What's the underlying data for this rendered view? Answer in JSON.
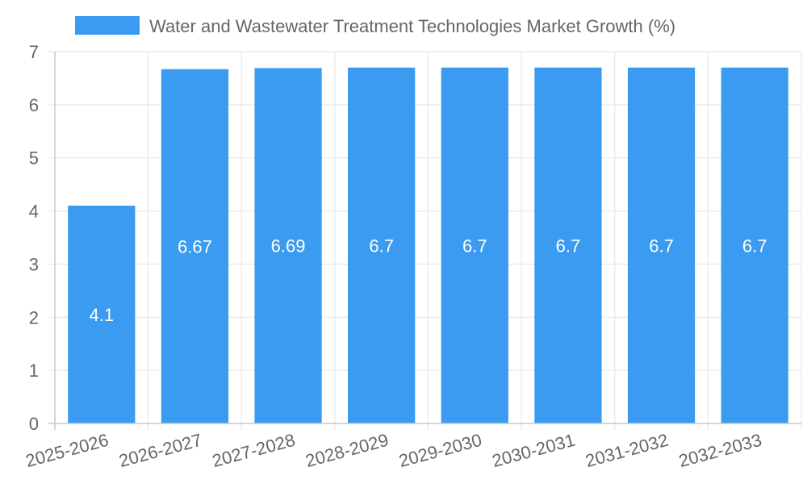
{
  "chart_data": {
    "type": "bar",
    "title": "",
    "xlabel": "",
    "ylabel": "",
    "legend": {
      "position": "top",
      "label": "Water and Wastewater Treatment Technologies Market Growth (%)"
    },
    "categories": [
      "2025-2026",
      "2026-2027",
      "2027-2028",
      "2028-2029",
      "2029-2030",
      "2030-2031",
      "2031-2032",
      "2032-2033"
    ],
    "series": [
      {
        "name": "Water and Wastewater Treatment Technologies Market Growth (%)",
        "values": [
          4.1,
          6.67,
          6.69,
          6.7,
          6.7,
          6.7,
          6.7,
          6.7
        ],
        "data_labels": [
          "4.1",
          "6.67",
          "6.69",
          "6.7",
          "6.7",
          "6.7",
          "6.7",
          "6.7"
        ]
      }
    ],
    "ylim": [
      0,
      7
    ],
    "yticks": [
      0,
      1,
      2,
      3,
      4,
      5,
      6,
      7
    ],
    "grid": true
  },
  "colors": {
    "bar": "#3a9bf0"
  }
}
